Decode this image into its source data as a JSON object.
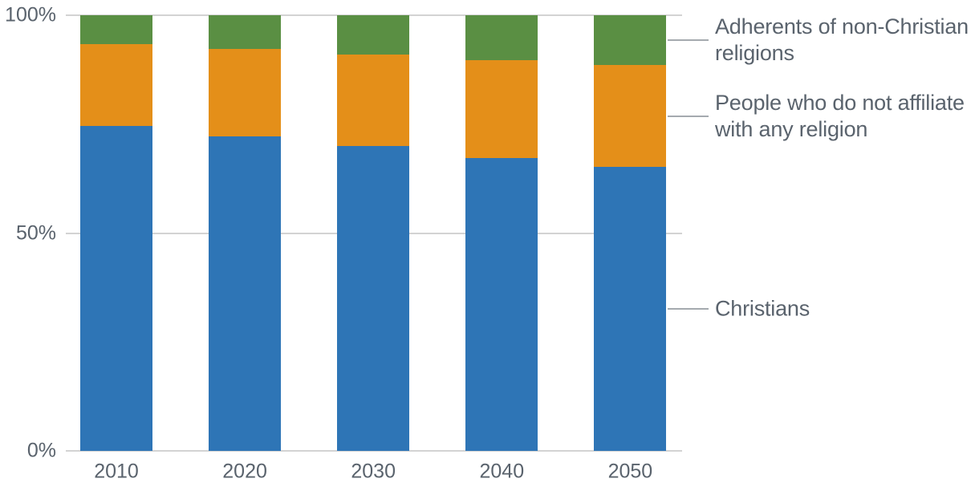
{
  "chart_data": {
    "type": "bar",
    "stacked": true,
    "percent_stacked": true,
    "title": "",
    "xlabel": "",
    "ylabel": "",
    "unit": "%",
    "categories": [
      "2010",
      "2020",
      "2030",
      "2040",
      "2050"
    ],
    "series": [
      {
        "name": "Christians",
        "label_lines": [
          "Christians"
        ],
        "color": "#2e75b6",
        "values": [
          74.5,
          72.1,
          69.9,
          67.3,
          65.2
        ]
      },
      {
        "name": "People who do not affiliate with any religion",
        "label_lines": [
          "People who do not affiliate",
          "with any religion"
        ],
        "color": "#e48f19",
        "values": [
          18.8,
          20.1,
          21.1,
          22.4,
          23.3
        ]
      },
      {
        "name": "Adherents of non-Christian religions",
        "label_lines": [
          "Adherents of non-Christian",
          "religions"
        ],
        "color": "#5a8f43",
        "values": [
          6.7,
          7.8,
          9.0,
          10.3,
          11.5
        ]
      }
    ],
    "y_axis": {
      "range": [
        0,
        100
      ],
      "tick_values": [
        0,
        50,
        100
      ],
      "ticks": [
        "0%",
        "50%",
        "100%"
      ],
      "grid": true
    },
    "legend_position": "right-direct-labels"
  },
  "style": {
    "background": "#ffffff",
    "grid_color": "#d3d3d3",
    "axis_text_color": "#5a636d",
    "legend_text_color": "#5a636d",
    "leader_line_color": "#a5aaaf"
  }
}
